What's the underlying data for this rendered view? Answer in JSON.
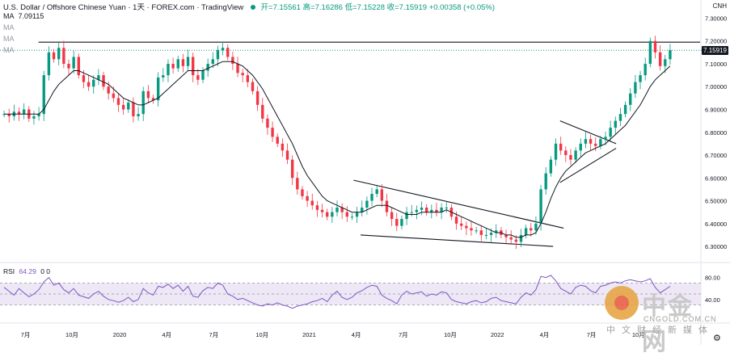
{
  "header": {
    "symbol": "U.S. Dollar / Offshore Chinese Yuan · 1天 · FOREX.com · TradingView",
    "ohlc": "开=7.15561 高=7.16286 低=7.15228 收=7.15919 +0.00358 (+0.05%)"
  },
  "ma_rows": [
    {
      "label": "MA",
      "value": "7.09115"
    },
    {
      "label": "MA",
      "value": ""
    },
    {
      "label": "MA",
      "value": ""
    },
    {
      "label": "MA",
      "value": ""
    }
  ],
  "currency_tag": "CNH",
  "price_badge": "7.15919",
  "rsi": {
    "label": "RSI",
    "value": "64.29",
    "extra": "0  0"
  },
  "watermark": {
    "cn": "中金网",
    "site": "CNGOLD.COM.CN",
    "sub": "中文财经新媒体"
  },
  "colors": {
    "up": "#089981",
    "down": "#f23645",
    "ma": "#131722",
    "rsi": "#7e57c2",
    "rsi_band": "#ede7f6",
    "last_price_line": "#089981",
    "trendline": "#131722"
  },
  "chart_data": {
    "type": "candlestick",
    "instrument": "USD/CNH",
    "y_axis_ticks": [
      "7.30000",
      "7.20000",
      "7.10000",
      "7.00000",
      "6.90000",
      "6.80000",
      "6.70000",
      "6.60000",
      "6.50000",
      "6.40000",
      "6.30000"
    ],
    "ylim": [
      6.24,
      7.33
    ],
    "x_tick_labels": [
      "7月",
      "10月",
      "2020",
      "4月",
      "7月",
      "10月",
      "2021",
      "4月",
      "7月",
      "10月",
      "2022",
      "4月",
      "7月",
      "10月"
    ],
    "last_price": 7.15919,
    "close_series": [
      6.88,
      6.87,
      6.89,
      6.88,
      6.9,
      6.86,
      6.87,
      6.88,
      7.05,
      7.15,
      7.12,
      7.17,
      7.1,
      7.08,
      7.13,
      7.05,
      7.02,
      7.0,
      7.03,
      7.05,
      7.0,
      6.97,
      6.95,
      6.92,
      6.9,
      6.93,
      6.87,
      6.88,
      6.98,
      6.95,
      6.94,
      7.04,
      7.05,
      7.1,
      7.08,
      7.12,
      7.09,
      7.13,
      7.05,
      7.03,
      7.07,
      7.1,
      7.12,
      7.16,
      7.17,
      7.13,
      7.1,
      7.06,
      7.05,
      7.02,
      6.98,
      6.92,
      6.86,
      6.82,
      6.78,
      6.75,
      6.72,
      6.68,
      6.6,
      6.55,
      6.52,
      6.5,
      6.48,
      6.46,
      6.45,
      6.43,
      6.45,
      6.47,
      6.45,
      6.43,
      6.43,
      6.45,
      6.47,
      6.5,
      6.53,
      6.55,
      6.5,
      6.45,
      6.42,
      6.39,
      6.42,
      6.45,
      6.45,
      6.46,
      6.47,
      6.45,
      6.46,
      6.45,
      6.47,
      6.47,
      6.43,
      6.4,
      6.39,
      6.38,
      6.37,
      6.37,
      6.35,
      6.35,
      6.36,
      6.37,
      6.35,
      6.34,
      6.33,
      6.32,
      6.35,
      6.38,
      6.37,
      6.4,
      6.55,
      6.62,
      6.68,
      6.75,
      6.72,
      6.7,
      6.68,
      6.72,
      6.75,
      6.77,
      6.75,
      6.74,
      6.77,
      6.78,
      6.82,
      6.85,
      6.88,
      6.92,
      6.97,
      7.02,
      7.05,
      7.1,
      7.2,
      7.15,
      7.09,
      7.12,
      7.16
    ],
    "ma_series": [
      6.88,
      6.88,
      6.88,
      6.88,
      6.88,
      6.88,
      6.88,
      6.88,
      6.9,
      6.94,
      6.98,
      7.01,
      7.03,
      7.05,
      7.07,
      7.07,
      7.06,
      7.05,
      7.04,
      7.03,
      7.02,
      7.01,
      6.99,
      6.97,
      6.95,
      6.94,
      6.93,
      6.92,
      6.92,
      6.93,
      6.94,
      6.95,
      6.97,
      6.99,
      7.01,
      7.03,
      7.05,
      7.07,
      7.07,
      7.07,
      7.07,
      7.08,
      7.09,
      7.1,
      7.11,
      7.11,
      7.11,
      7.1,
      7.09,
      7.07,
      7.05,
      7.02,
      6.99,
      6.95,
      6.91,
      6.87,
      6.83,
      6.79,
      6.75,
      6.7,
      6.65,
      6.61,
      6.58,
      6.55,
      6.52,
      6.5,
      6.49,
      6.48,
      6.47,
      6.46,
      6.45,
      6.45,
      6.45,
      6.46,
      6.47,
      6.48,
      6.48,
      6.48,
      6.47,
      6.46,
      6.45,
      6.44,
      6.44,
      6.44,
      6.45,
      6.45,
      6.45,
      6.45,
      6.45,
      6.46,
      6.45,
      6.44,
      6.43,
      6.42,
      6.41,
      6.4,
      6.39,
      6.38,
      6.37,
      6.36,
      6.36,
      6.35,
      6.35,
      6.34,
      6.34,
      6.35,
      6.35,
      6.36,
      6.4,
      6.45,
      6.51,
      6.56,
      6.6,
      6.63,
      6.65,
      6.67,
      6.69,
      6.71,
      6.72,
      6.73,
      6.74,
      6.75,
      6.77,
      6.79,
      6.81,
      6.83,
      6.86,
      6.89,
      6.92,
      6.96,
      7.0,
      7.03,
      7.05,
      7.07,
      7.09
    ],
    "trendlines": [
      {
        "from": [
          0.055,
          7.195
        ],
        "to": [
          1.0,
          7.195
        ]
      },
      {
        "from": [
          0.505,
          6.59
        ],
        "to": [
          0.805,
          6.38
        ]
      },
      {
        "from": [
          0.515,
          6.35
        ],
        "to": [
          0.79,
          6.3
        ]
      },
      {
        "from": [
          0.8,
          6.85
        ],
        "to": [
          0.88,
          6.75
        ]
      },
      {
        "from": [
          0.8,
          6.58
        ],
        "to": [
          0.88,
          6.73
        ]
      }
    ],
    "rsi_range": [
      0,
      100
    ],
    "rsi_levels": [
      30,
      50,
      70
    ],
    "rsi_axis_ticks": [
      "80.00",
      "40.00"
    ],
    "rsi_series": [
      62,
      55,
      48,
      60,
      52,
      45,
      50,
      58,
      72,
      80,
      66,
      70,
      58,
      52,
      60,
      48,
      45,
      42,
      50,
      55,
      46,
      40,
      38,
      35,
      38,
      44,
      36,
      40,
      60,
      52,
      48,
      64,
      62,
      68,
      60,
      66,
      55,
      64,
      46,
      44,
      56,
      62,
      60,
      70,
      66,
      50,
      46,
      40,
      42,
      38,
      34,
      30,
      28,
      32,
      30,
      34,
      30,
      28,
      24,
      28,
      30,
      32,
      36,
      38,
      42,
      36,
      48,
      55,
      44,
      40,
      44,
      52,
      56,
      62,
      66,
      64,
      48,
      42,
      38,
      32,
      48,
      55,
      50,
      52,
      54,
      46,
      50,
      48,
      54,
      52,
      40,
      36,
      34,
      32,
      36,
      38,
      34,
      36,
      42,
      44,
      38,
      36,
      34,
      32,
      44,
      52,
      48,
      58,
      82,
      80,
      84,
      74,
      60,
      55,
      50,
      62,
      66,
      64,
      56,
      52,
      64,
      66,
      70,
      72,
      70,
      74,
      76,
      74,
      72,
      74,
      78,
      62,
      52,
      58,
      64
    ]
  }
}
